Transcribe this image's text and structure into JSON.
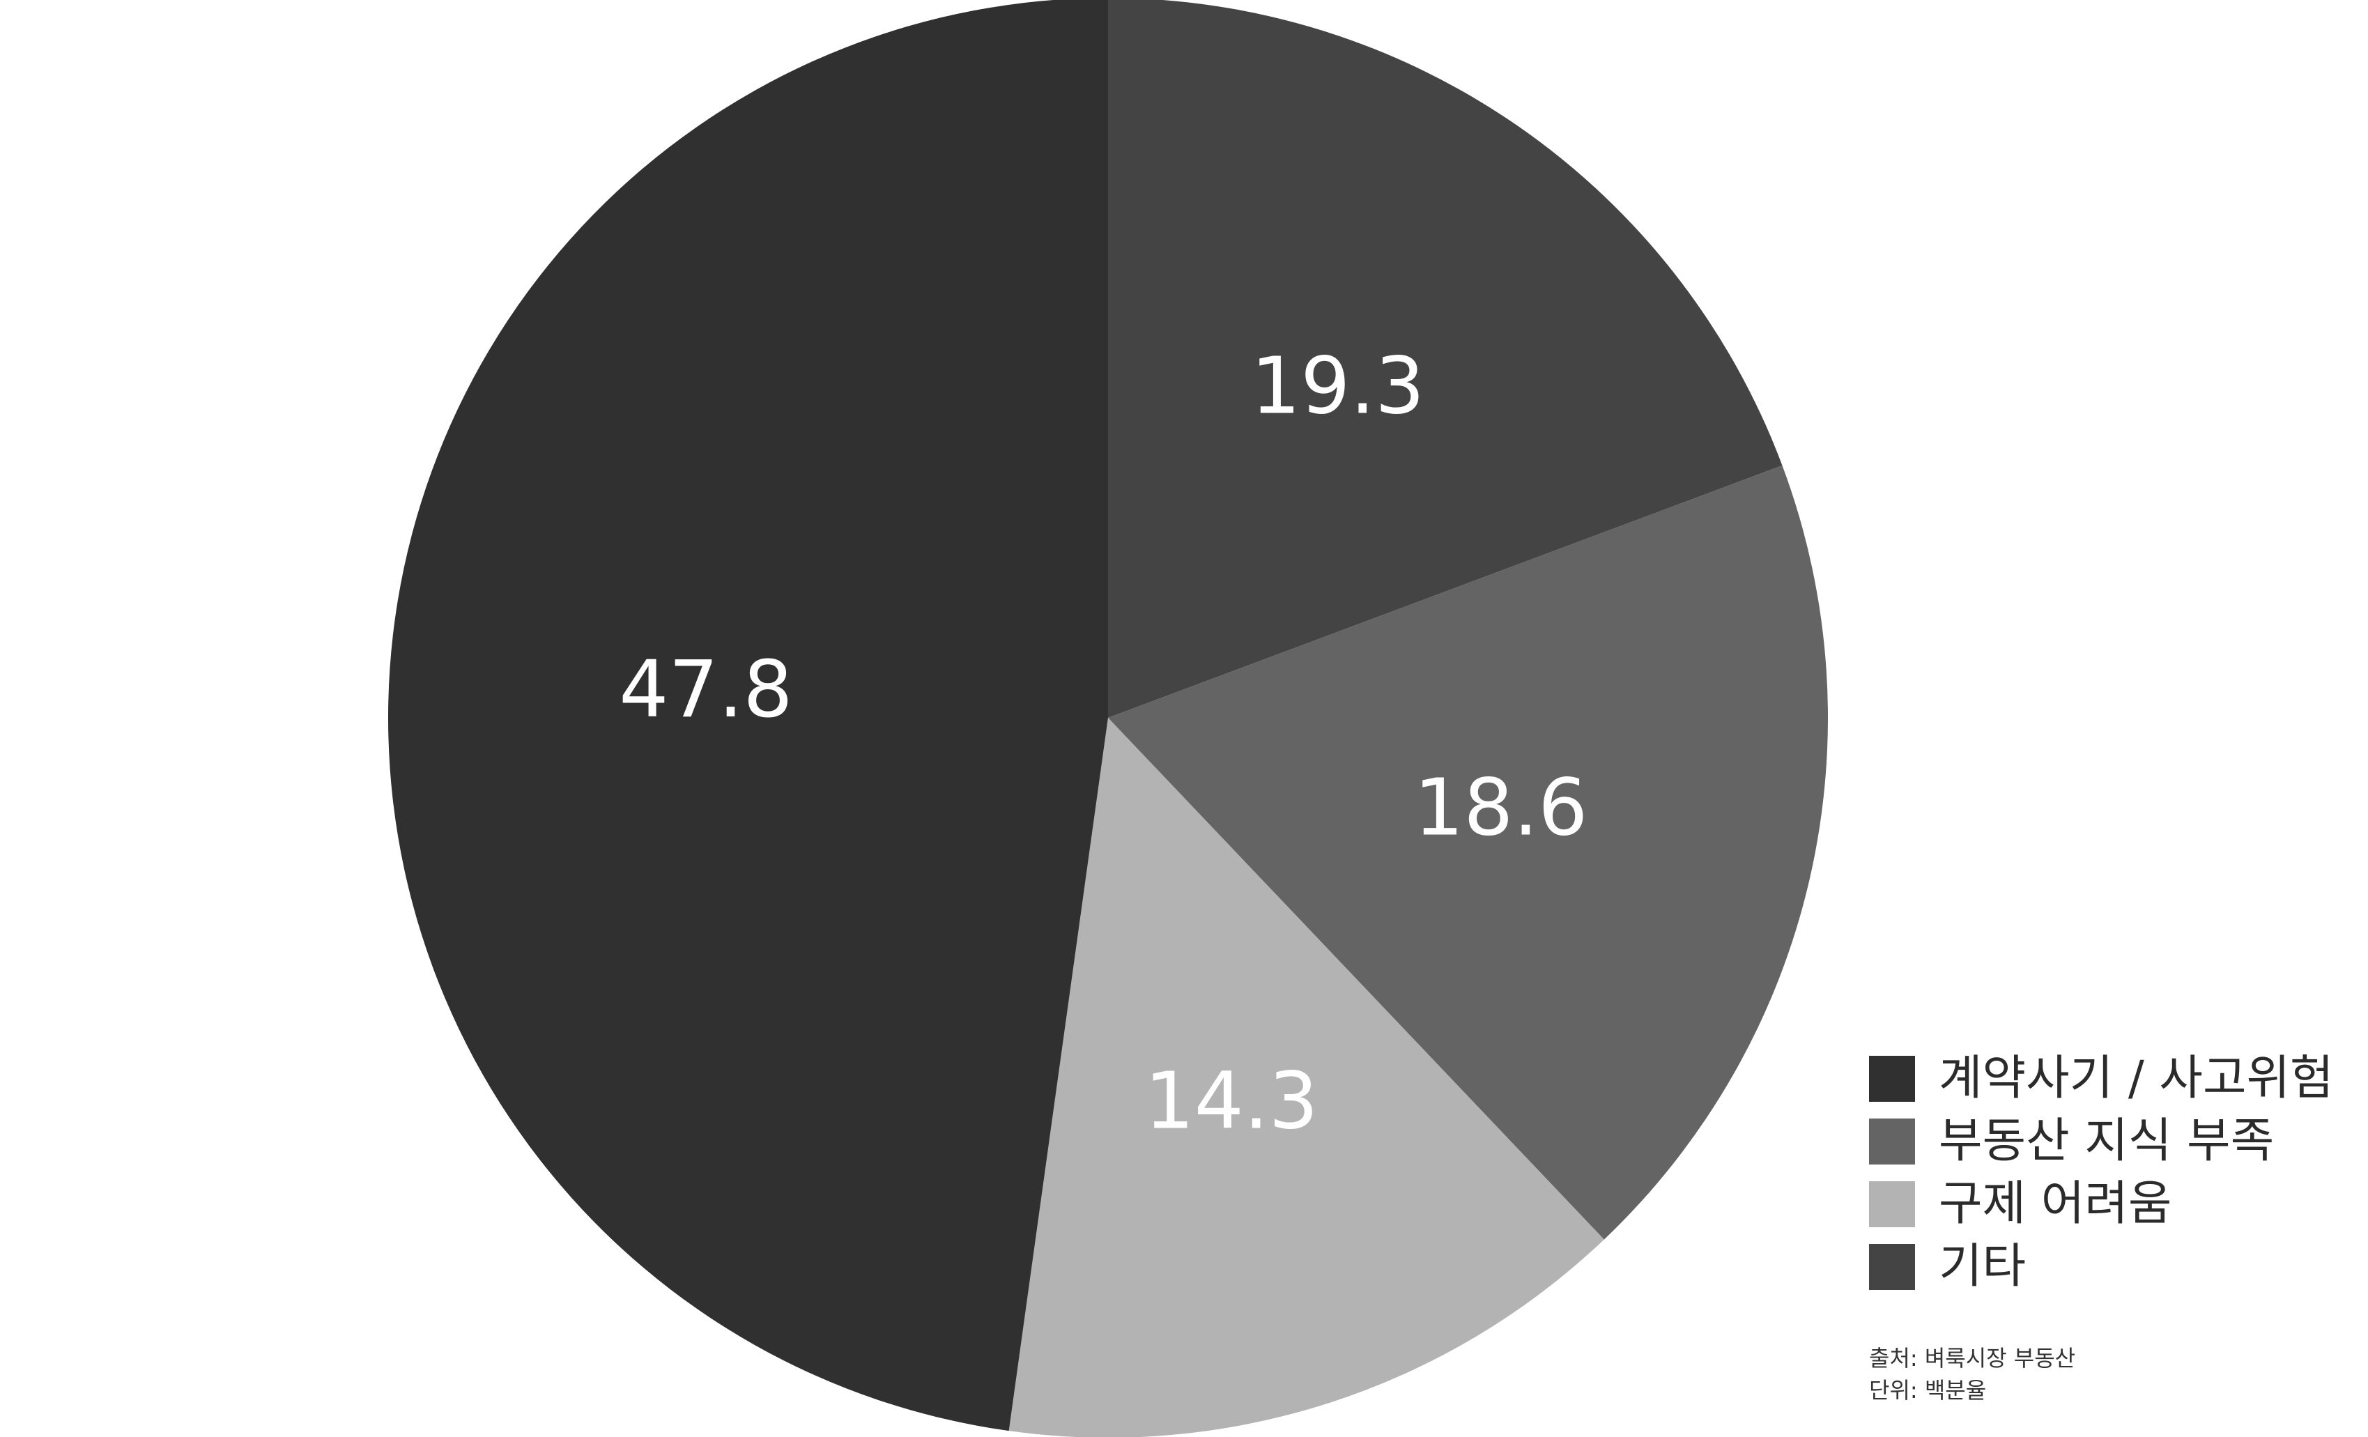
{
  "chart_data": {
    "type": "pie",
    "categories": [
      "기타",
      "부동산 지식 부족",
      "구제 어려움",
      "계약사기 / 사고위험"
    ],
    "values": [
      19.3,
      18.6,
      14.3,
      47.8
    ],
    "value_labels": [
      "19.3",
      "18.6",
      "14.3",
      "47.8"
    ],
    "colors": [
      "#444444",
      "#646464",
      "#b3b3b3",
      "#303030"
    ],
    "start_angle": "12 o'clock",
    "direction": "clockwise",
    "legend": {
      "placement": "bottom-right",
      "entries": [
        {
          "label": "계약사기 / 사고위험",
          "color": "#303030"
        },
        {
          "label": "부동산 지식 부족",
          "color": "#646464"
        },
        {
          "label": "구제 어려움",
          "color": "#b3b3b3"
        },
        {
          "label": "기타",
          "color": "#444444"
        }
      ]
    },
    "source": "출처: 벼룩시장 부동산",
    "unit": "단위: 백분율"
  }
}
